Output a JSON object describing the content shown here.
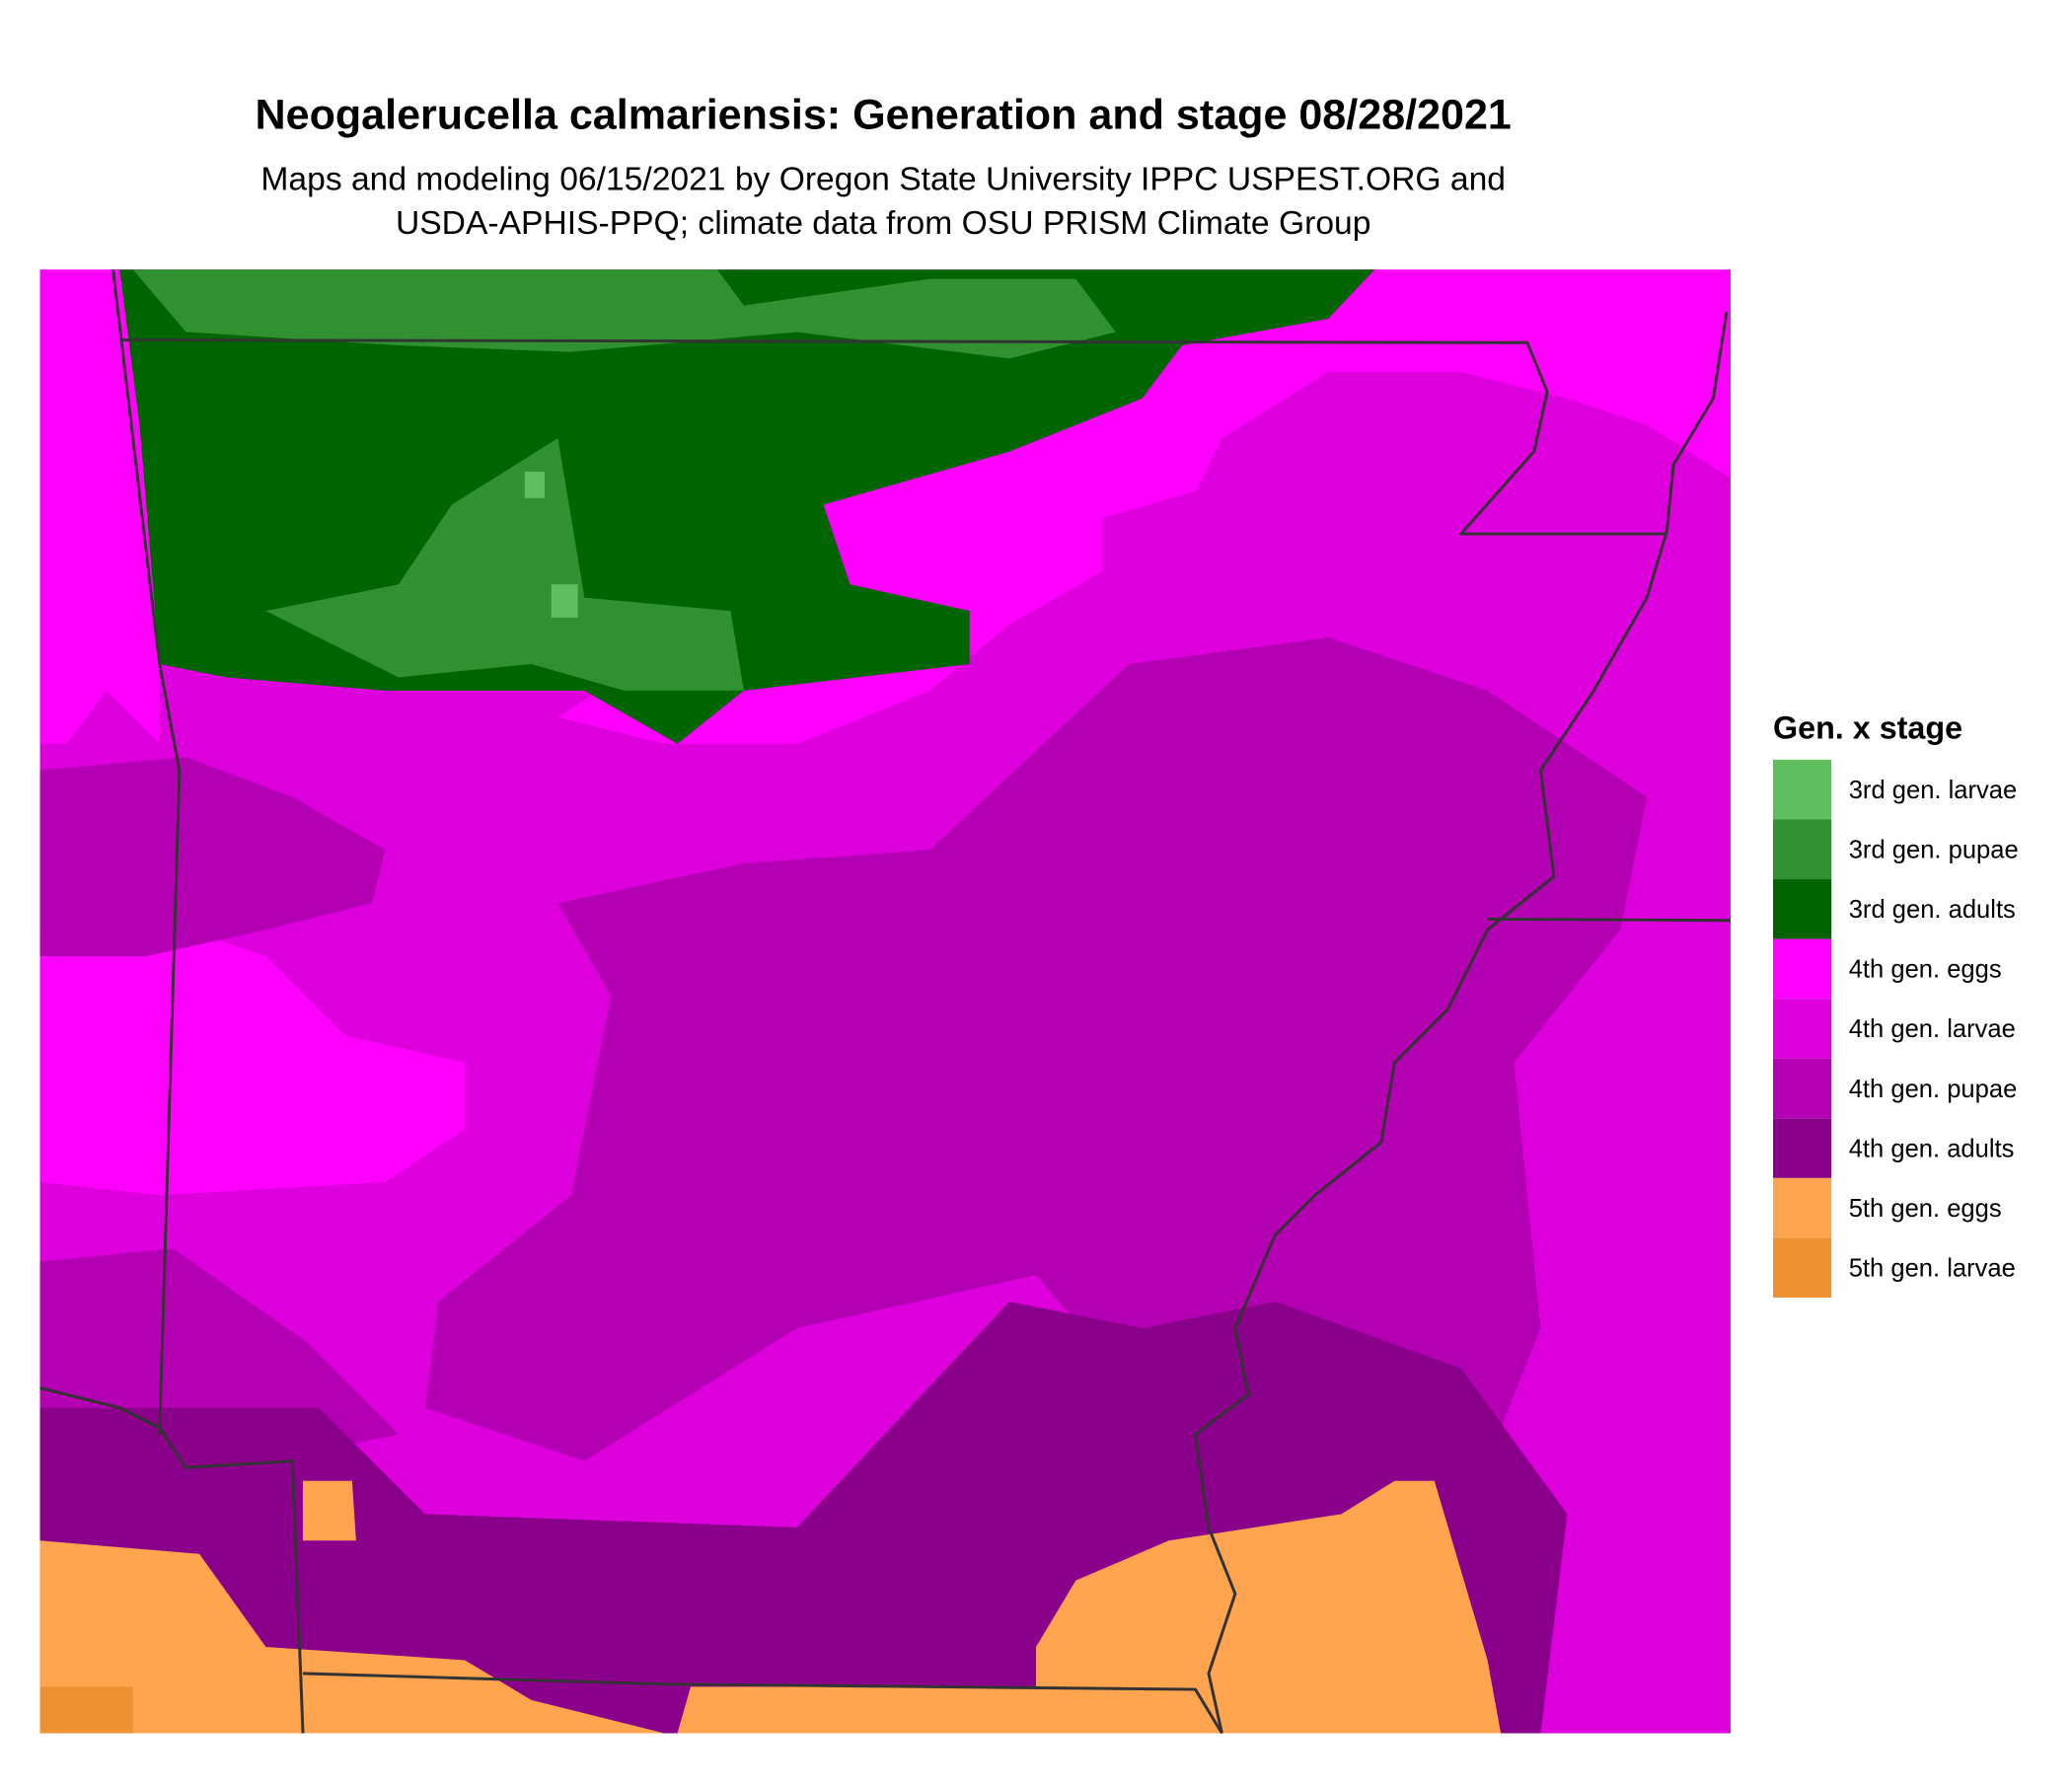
{
  "title": "Neogalerucella calmariensis: Generation and stage 08/28/2021",
  "subtitle": [
    "Maps and modeling 06/15/2021 by Oregon State University IPPC USPEST.ORG and",
    "USDA-APHIS-PPQ; climate data from OSU PRISM Climate Group"
  ],
  "legend": {
    "title": "Gen. x stage",
    "items": [
      {
        "label": "3rd gen. larvae",
        "color": "#5fbf5f"
      },
      {
        "label": "3rd gen. pupae",
        "color": "#31902f"
      },
      {
        "label": "3rd gen. adults",
        "color": "#006400"
      },
      {
        "label": "4th gen. eggs",
        "color": "#ff00ff"
      },
      {
        "label": "4th gen. larvae",
        "color": "#dd00dd"
      },
      {
        "label": "4th gen. pupae",
        "color": "#b300b3"
      },
      {
        "label": "4th gen. adults",
        "color": "#8b008b"
      },
      {
        "label": "5th gen. eggs",
        "color": "#ffa54f"
      },
      {
        "label": "5th gen. larvae",
        "color": "#ee9133"
      }
    ]
  }
}
